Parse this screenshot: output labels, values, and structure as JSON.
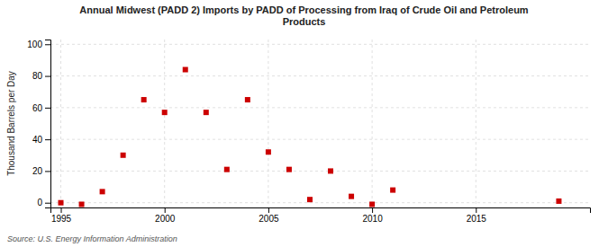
{
  "chart_data": {
    "type": "scatter",
    "title": "Annual Midwest (PADD 2) Imports by PADD of Processing from Iraq of Crude Oil and Petroleum\nProducts",
    "ylabel": "Thousand Barrels per Day",
    "annotations": [
      "Source: U.S. Energy Information Administration"
    ],
    "x": [
      1995,
      1996,
      1997,
      1998,
      1999,
      2000,
      2001,
      2002,
      2003,
      2004,
      2005,
      2006,
      2007,
      2008,
      2009,
      2010,
      2011,
      2019
    ],
    "values": [
      0.0,
      -1.0,
      7.0,
      30.0,
      65.0,
      57.0,
      84.0,
      57.0,
      21.0,
      65.0,
      32.0,
      21.0,
      2.0,
      20.0,
      4.0,
      -1.0,
      8.0,
      1.0
    ],
    "color": "#cc0000",
    "marker": "square",
    "xlim": [
      1994.5,
      2020.5
    ],
    "ylim": [
      -3,
      103
    ],
    "xticks": [
      1995,
      2000,
      2005,
      2010,
      2015
    ],
    "yticks": [
      0,
      20,
      40,
      60,
      80,
      100
    ],
    "grid": true
  }
}
